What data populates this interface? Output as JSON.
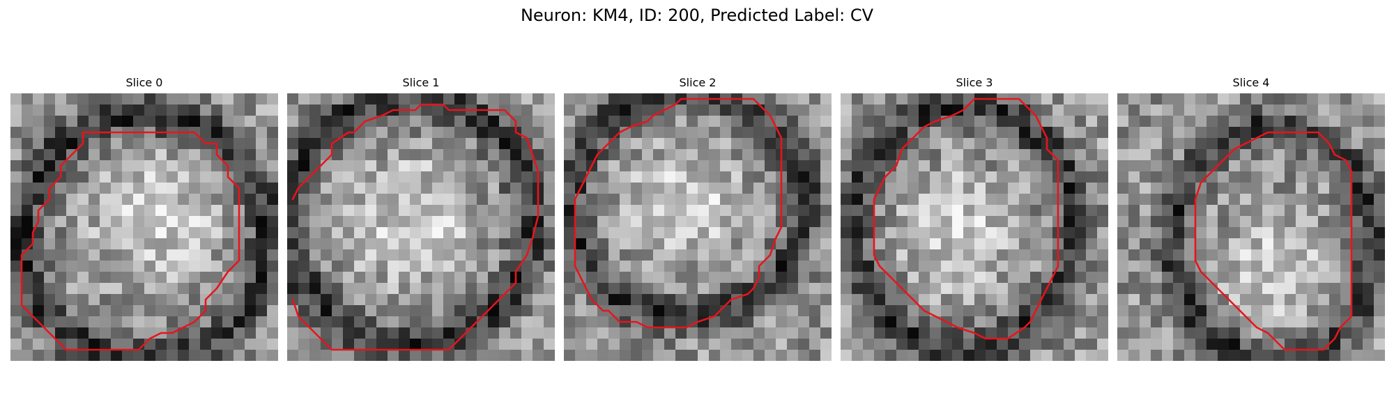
{
  "figure": {
    "title": "Neuron: KM4, ID: 200, Predicted Label: CV"
  },
  "overlay_color": "#e8141c",
  "panels": [
    {
      "title": "Slice 0",
      "contour": [
        [
          6.5,
          3.5
        ],
        [
          16.5,
          3.5
        ],
        [
          17.5,
          4.5
        ],
        [
          18.5,
          4.5
        ],
        [
          18.5,
          5.5
        ],
        [
          19.5,
          6.5
        ],
        [
          19.5,
          7.5
        ],
        [
          20.5,
          8.5
        ],
        [
          20.5,
          15.0
        ],
        [
          19.5,
          16.0
        ],
        [
          18.5,
          17.5
        ],
        [
          17.5,
          18.5
        ],
        [
          17.5,
          19.5
        ],
        [
          16.5,
          20.5
        ],
        [
          15.5,
          21.0
        ],
        [
          14.5,
          21.5
        ],
        [
          13.5,
          21.5
        ],
        [
          12.5,
          22.0
        ],
        [
          11.5,
          23.0
        ],
        [
          5.0,
          23.0
        ],
        [
          1.0,
          19.0
        ],
        [
          1.0,
          14.5
        ],
        [
          2.0,
          13.5
        ],
        [
          2.0,
          12.5
        ],
        [
          2.5,
          11.5
        ],
        [
          2.5,
          10.5
        ],
        [
          3.5,
          9.5
        ],
        [
          3.5,
          8.5
        ],
        [
          4.5,
          7.5
        ],
        [
          4.5,
          6.5
        ],
        [
          5.5,
          5.5
        ],
        [
          6.5,
          4.5
        ],
        [
          6.5,
          3.5
        ]
      ],
      "dark_ring": {
        "cx": 12,
        "cy": 13,
        "rx": 11,
        "ry": 11
      },
      "bright_core": {
        "cx": 13,
        "cy": 11,
        "rx": 7,
        "ry": 7
      }
    },
    {
      "title": "Slice 1",
      "contour": [
        [
          0.5,
          9.5
        ],
        [
          1.0,
          8.5
        ],
        [
          4.0,
          5.5
        ],
        [
          4.0,
          4.5
        ],
        [
          5.5,
          3.5
        ],
        [
          6.0,
          3.5
        ],
        [
          7.0,
          2.5
        ],
        [
          8.5,
          2.0
        ],
        [
          9.5,
          1.5
        ],
        [
          11.5,
          1.5
        ],
        [
          12.0,
          1.0
        ],
        [
          14.0,
          1.0
        ],
        [
          14.5,
          1.5
        ],
        [
          19.5,
          1.5
        ],
        [
          20.5,
          2.5
        ],
        [
          20.5,
          3.5
        ],
        [
          21.5,
          4.0
        ],
        [
          22.0,
          5.5
        ],
        [
          22.5,
          7.0
        ],
        [
          22.5,
          11.0
        ],
        [
          22.0,
          13.0
        ],
        [
          21.5,
          14.5
        ],
        [
          20.5,
          16.0
        ],
        [
          20.5,
          17.0
        ],
        [
          19.5,
          18.0
        ],
        [
          18.5,
          19.0
        ],
        [
          17.5,
          20.0
        ],
        [
          16.5,
          21.0
        ],
        [
          15.5,
          22.0
        ],
        [
          14.5,
          23.0
        ],
        [
          4.0,
          23.0
        ],
        [
          2.0,
          21.0
        ],
        [
          1.0,
          20.0
        ],
        [
          0.5,
          18.5
        ]
      ],
      "dark_ring": {
        "cx": 11,
        "cy": 11.5,
        "rx": 11,
        "ry": 11
      },
      "bright_core": {
        "cx": 11,
        "cy": 11.5,
        "rx": 7,
        "ry": 7
      }
    },
    {
      "title": "Slice 2",
      "contour": [
        [
          7.5,
          2.5
        ],
        [
          8.0,
          2.0
        ],
        [
          9.0,
          1.5
        ],
        [
          10.0,
          1.0
        ],
        [
          10.5,
          0.5
        ],
        [
          17.0,
          0.5
        ],
        [
          17.5,
          1.0
        ],
        [
          18.0,
          1.5
        ],
        [
          18.5,
          2.0
        ],
        [
          19.0,
          3.0
        ],
        [
          19.5,
          4.0
        ],
        [
          19.5,
          5.0
        ],
        [
          19.5,
          9.5
        ],
        [
          19.5,
          12.0
        ],
        [
          19.0,
          13.0
        ],
        [
          18.5,
          14.5
        ],
        [
          17.5,
          15.5
        ],
        [
          17.5,
          16.5
        ],
        [
          17.0,
          17.5
        ],
        [
          16.5,
          18.0
        ],
        [
          15.0,
          18.5
        ],
        [
          14.0,
          19.5
        ],
        [
          13.5,
          20.0
        ],
        [
          12.0,
          20.5
        ],
        [
          11.0,
          21.0
        ],
        [
          7.5,
          21.0
        ],
        [
          6.5,
          20.5
        ],
        [
          5.0,
          20.5
        ],
        [
          4.0,
          19.5
        ],
        [
          3.5,
          19.5
        ],
        [
          2.5,
          18.5
        ],
        [
          2.0,
          17.5
        ],
        [
          1.5,
          16.5
        ],
        [
          1.0,
          15.5
        ],
        [
          1.0,
          9.5
        ],
        [
          1.5,
          8.5
        ],
        [
          2.0,
          7.5
        ],
        [
          2.5,
          6.5
        ],
        [
          3.0,
          5.5
        ],
        [
          4.0,
          4.5
        ],
        [
          5.0,
          3.5
        ],
        [
          6.0,
          3.0
        ],
        [
          7.5,
          2.5
        ]
      ],
      "dark_ring": {
        "cx": 11,
        "cy": 10,
        "rx": 10.5,
        "ry": 10
      },
      "bright_core": {
        "cx": 11,
        "cy": 10,
        "rx": 6.5,
        "ry": 6.5
      }
    },
    {
      "title": "Slice 3",
      "contour": [
        [
          12.0,
          0.5
        ],
        [
          16.0,
          0.5
        ],
        [
          17.0,
          1.5
        ],
        [
          17.5,
          2.0
        ],
        [
          18.0,
          3.0
        ],
        [
          18.5,
          4.0
        ],
        [
          18.5,
          5.0
        ],
        [
          19.0,
          5.5
        ],
        [
          19.5,
          6.0
        ],
        [
          19.5,
          15.5
        ],
        [
          19.0,
          16.5
        ],
        [
          18.5,
          17.5
        ],
        [
          18.0,
          18.5
        ],
        [
          17.5,
          19.5
        ],
        [
          17.0,
          20.5
        ],
        [
          16.5,
          21.0
        ],
        [
          15.0,
          22.0
        ],
        [
          13.0,
          22.0
        ],
        [
          12.0,
          21.5
        ],
        [
          10.5,
          21.0
        ],
        [
          9.5,
          20.5
        ],
        [
          8.5,
          20.0
        ],
        [
          7.5,
          19.5
        ],
        [
          6.5,
          18.5
        ],
        [
          5.5,
          17.5
        ],
        [
          4.5,
          16.5
        ],
        [
          3.5,
          15.5
        ],
        [
          3.0,
          14.5
        ],
        [
          3.0,
          12.0
        ],
        [
          3.0,
          9.5
        ],
        [
          3.5,
          8.5
        ],
        [
          4.0,
          7.5
        ],
        [
          5.0,
          6.5
        ],
        [
          5.5,
          5.0
        ],
        [
          6.5,
          4.0
        ],
        [
          7.5,
          3.0
        ],
        [
          8.5,
          2.5
        ],
        [
          10.0,
          2.0
        ],
        [
          11.0,
          1.5
        ],
        [
          12.0,
          0.5
        ]
      ],
      "dark_ring": {
        "cx": 11,
        "cy": 12,
        "rx": 10,
        "ry": 11
      },
      "bright_core": {
        "cx": 10.5,
        "cy": 12.5,
        "rx": 6,
        "ry": 7
      }
    },
    {
      "title": "Slice 4",
      "contour": [
        [
          14.0,
          3.5
        ],
        [
          18.0,
          3.5
        ],
        [
          18.5,
          4.0
        ],
        [
          19.0,
          4.5
        ],
        [
          19.5,
          5.5
        ],
        [
          20.5,
          6.0
        ],
        [
          21.0,
          7.0
        ],
        [
          21.0,
          20.0
        ],
        [
          20.0,
          21.0
        ],
        [
          19.5,
          22.0
        ],
        [
          19.0,
          22.5
        ],
        [
          18.5,
          23.0
        ],
        [
          15.0,
          23.0
        ],
        [
          14.0,
          22.0
        ],
        [
          13.5,
          21.5
        ],
        [
          12.5,
          21.0
        ],
        [
          11.5,
          20.0
        ],
        [
          10.5,
          19.0
        ],
        [
          9.5,
          18.0
        ],
        [
          8.5,
          17.0
        ],
        [
          7.5,
          16.0
        ],
        [
          7.0,
          15.0
        ],
        [
          7.0,
          12.5
        ],
        [
          7.0,
          11.0
        ],
        [
          7.0,
          9.5
        ],
        [
          7.5,
          8.0
        ],
        [
          8.5,
          7.0
        ],
        [
          9.5,
          6.0
        ],
        [
          10.5,
          5.0
        ],
        [
          11.5,
          4.5
        ],
        [
          12.5,
          4.0
        ],
        [
          13.5,
          3.5
        ],
        [
          14.0,
          3.5
        ]
      ],
      "dark_ring": {
        "cx": 14,
        "cy": 13.5,
        "rx": 9,
        "ry": 10.5
      },
      "bright_core": {
        "cx": 14,
        "cy": 16,
        "rx": 6,
        "ry": 6
      }
    }
  ]
}
